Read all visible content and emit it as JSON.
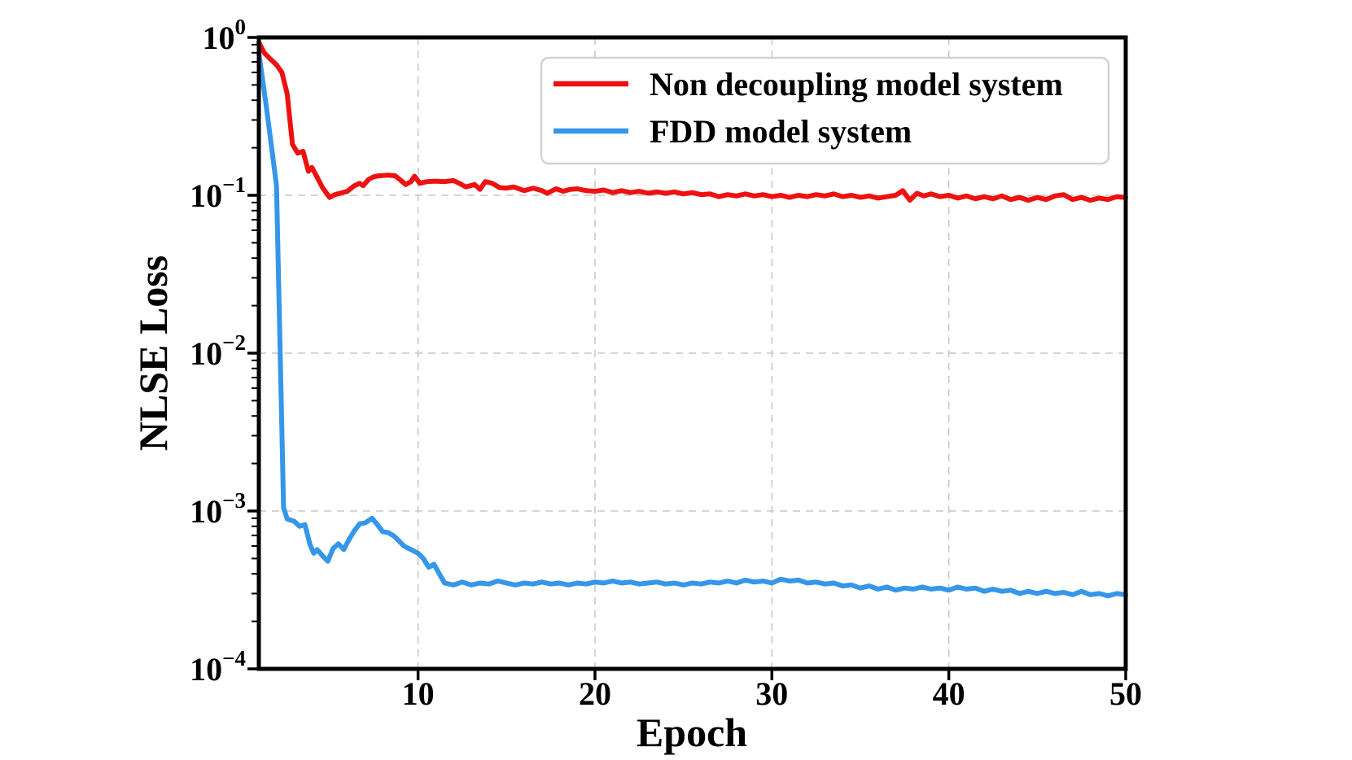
{
  "figure": {
    "background": "#ffffff",
    "xlabel": "Epoch",
    "ylabel": "NLSE Loss"
  },
  "legend": {
    "entries": [
      {
        "label": "Non decoupling model system",
        "color": "#ee1111"
      },
      {
        "label": "FDD model system",
        "color": "#3596ea"
      }
    ]
  },
  "chart_data": {
    "type": "line",
    "title": "",
    "xlabel": "Epoch",
    "ylabel": "NLSE Loss",
    "x_axis": {
      "scale": "linear",
      "min": 1,
      "max": 50,
      "ticks": [
        10,
        20,
        30,
        40,
        50
      ]
    },
    "y_axis": {
      "scale": "log",
      "min": 0.0001,
      "max": 1,
      "tick_exponents": [
        0,
        -1,
        -2,
        -3,
        -4
      ]
    },
    "grid": {
      "style": "dashed",
      "color": "#c9c9c9",
      "vertical_at_x": [
        10,
        20,
        30,
        40
      ],
      "horizontal_at_y": [
        0.1,
        0.01,
        0.001
      ]
    },
    "legend_position": "upper right",
    "series": [
      {
        "name": "Non decoupling model system",
        "color": "#ee1111",
        "points": [
          [
            1,
            0.93
          ],
          [
            1.3,
            0.8
          ],
          [
            1.6,
            0.74
          ],
          [
            2,
            0.67
          ],
          [
            2.3,
            0.6
          ],
          [
            2.6,
            0.44
          ],
          [
            2.9,
            0.21
          ],
          [
            3.2,
            0.185
          ],
          [
            3.5,
            0.19
          ],
          [
            3.8,
            0.142
          ],
          [
            4.0,
            0.15
          ],
          [
            4.3,
            0.13
          ],
          [
            4.6,
            0.112
          ],
          [
            5.0,
            0.097
          ],
          [
            5.3,
            0.101
          ],
          [
            5.6,
            0.103
          ],
          [
            6.0,
            0.106
          ],
          [
            6.4,
            0.115
          ],
          [
            6.7,
            0.119
          ],
          [
            6.9,
            0.115
          ],
          [
            7.2,
            0.126
          ],
          [
            7.5,
            0.131
          ],
          [
            7.8,
            0.133
          ],
          [
            8.3,
            0.134
          ],
          [
            8.7,
            0.133
          ],
          [
            9.0,
            0.125
          ],
          [
            9.3,
            0.117
          ],
          [
            9.6,
            0.122
          ],
          [
            9.8,
            0.132
          ],
          [
            10.1,
            0.119
          ],
          [
            10.5,
            0.122
          ],
          [
            11,
            0.123
          ],
          [
            11.5,
            0.122
          ],
          [
            12,
            0.124
          ],
          [
            12.4,
            0.118
          ],
          [
            12.7,
            0.113
          ],
          [
            13.2,
            0.117
          ],
          [
            13.5,
            0.109
          ],
          [
            13.8,
            0.122
          ],
          [
            14.2,
            0.119
          ],
          [
            14.6,
            0.112
          ],
          [
            15,
            0.111
          ],
          [
            15.4,
            0.113
          ],
          [
            16,
            0.107
          ],
          [
            16.5,
            0.111
          ],
          [
            17,
            0.107
          ],
          [
            17.3,
            0.103
          ],
          [
            17.8,
            0.11
          ],
          [
            18.2,
            0.106
          ],
          [
            18.6,
            0.109
          ],
          [
            19,
            0.11
          ],
          [
            19.5,
            0.107
          ],
          [
            20,
            0.106
          ],
          [
            20.5,
            0.108
          ],
          [
            21,
            0.104
          ],
          [
            21.5,
            0.107
          ],
          [
            22,
            0.104
          ],
          [
            22.5,
            0.106
          ],
          [
            23,
            0.103
          ],
          [
            23.5,
            0.105
          ],
          [
            24,
            0.103
          ],
          [
            24.5,
            0.105
          ],
          [
            25,
            0.102
          ],
          [
            25.5,
            0.104
          ],
          [
            26,
            0.101
          ],
          [
            26.5,
            0.102
          ],
          [
            27,
            0.098
          ],
          [
            27.5,
            0.101
          ],
          [
            28,
            0.099
          ],
          [
            28.5,
            0.102
          ],
          [
            29,
            0.099
          ],
          [
            29.5,
            0.101
          ],
          [
            30,
            0.098
          ],
          [
            30.5,
            0.1
          ],
          [
            31,
            0.097
          ],
          [
            31.5,
            0.1
          ],
          [
            32,
            0.098
          ],
          [
            32.5,
            0.101
          ],
          [
            33,
            0.099
          ],
          [
            33.5,
            0.102
          ],
          [
            34,
            0.098
          ],
          [
            34.5,
            0.1
          ],
          [
            35,
            0.097
          ],
          [
            35.5,
            0.099
          ],
          [
            36,
            0.096
          ],
          [
            36.5,
            0.098
          ],
          [
            37,
            0.1
          ],
          [
            37.4,
            0.107
          ],
          [
            37.8,
            0.093
          ],
          [
            38.2,
            0.103
          ],
          [
            38.6,
            0.099
          ],
          [
            39,
            0.102
          ],
          [
            39.5,
            0.098
          ],
          [
            40,
            0.1
          ],
          [
            40.5,
            0.096
          ],
          [
            41,
            0.099
          ],
          [
            41.5,
            0.095
          ],
          [
            42,
            0.098
          ],
          [
            42.5,
            0.095
          ],
          [
            43,
            0.099
          ],
          [
            43.5,
            0.094
          ],
          [
            44,
            0.097
          ],
          [
            44.5,
            0.093
          ],
          [
            45,
            0.097
          ],
          [
            45.5,
            0.094
          ],
          [
            46,
            0.099
          ],
          [
            46.5,
            0.101
          ],
          [
            47,
            0.094
          ],
          [
            47.5,
            0.097
          ],
          [
            48,
            0.093
          ],
          [
            48.5,
            0.096
          ],
          [
            49,
            0.094
          ],
          [
            49.5,
            0.098
          ],
          [
            50,
            0.097
          ]
        ]
      },
      {
        "name": "FDD model system",
        "color": "#3596ea",
        "points": [
          [
            1,
            0.8
          ],
          [
            1.4,
            0.38
          ],
          [
            1.7,
            0.21
          ],
          [
            2,
            0.115
          ],
          [
            2.4,
            0.00105
          ],
          [
            2.6,
            0.00089
          ],
          [
            3,
            0.00086
          ],
          [
            3.3,
            0.0008
          ],
          [
            3.6,
            0.00082
          ],
          [
            3.9,
            0.00061
          ],
          [
            4.1,
            0.00054
          ],
          [
            4.3,
            0.00057
          ],
          [
            4.6,
            0.00052
          ],
          [
            4.9,
            0.00048
          ],
          [
            5.2,
            0.00058
          ],
          [
            5.5,
            0.00062
          ],
          [
            5.8,
            0.00057
          ],
          [
            6.1,
            0.00066
          ],
          [
            6.4,
            0.00075
          ],
          [
            6.7,
            0.00083
          ],
          [
            7.0,
            0.00084
          ],
          [
            7.4,
            0.0009
          ],
          [
            7.7,
            0.00082
          ],
          [
            8.0,
            0.00074
          ],
          [
            8.3,
            0.00073
          ],
          [
            8.6,
            0.0007
          ],
          [
            8.9,
            0.00065
          ],
          [
            9.2,
            0.0006
          ],
          [
            9.6,
            0.00057
          ],
          [
            10.0,
            0.00054
          ],
          [
            10.3,
            0.0005
          ],
          [
            10.6,
            0.00044
          ],
          [
            10.9,
            0.00046
          ],
          [
            11.2,
            0.0004
          ],
          [
            11.5,
            0.00035
          ],
          [
            12,
            0.00034
          ],
          [
            12.5,
            0.000355
          ],
          [
            13,
            0.00034
          ],
          [
            13.5,
            0.00035
          ],
          [
            14,
            0.000345
          ],
          [
            14.5,
            0.00036
          ],
          [
            15,
            0.00035
          ],
          [
            15.5,
            0.00034
          ],
          [
            16,
            0.00035
          ],
          [
            16.5,
            0.000345
          ],
          [
            17,
            0.000355
          ],
          [
            17.5,
            0.000345
          ],
          [
            18,
            0.00035
          ],
          [
            18.5,
            0.00034
          ],
          [
            19,
            0.00035
          ],
          [
            19.5,
            0.000345
          ],
          [
            20,
            0.000355
          ],
          [
            20.5,
            0.00035
          ],
          [
            21,
            0.00036
          ],
          [
            21.5,
            0.00035
          ],
          [
            22,
            0.000355
          ],
          [
            22.5,
            0.000345
          ],
          [
            23,
            0.00035
          ],
          [
            23.5,
            0.000355
          ],
          [
            24,
            0.000345
          ],
          [
            24.5,
            0.00035
          ],
          [
            25,
            0.00034
          ],
          [
            25.5,
            0.00035
          ],
          [
            26,
            0.000345
          ],
          [
            26.5,
            0.000355
          ],
          [
            27,
            0.00035
          ],
          [
            27.5,
            0.00036
          ],
          [
            28,
            0.00035
          ],
          [
            28.5,
            0.000365
          ],
          [
            29,
            0.000355
          ],
          [
            29.5,
            0.00036
          ],
          [
            30,
            0.00035
          ],
          [
            30.5,
            0.00037
          ],
          [
            31,
            0.00036
          ],
          [
            31.5,
            0.000365
          ],
          [
            32,
            0.00035
          ],
          [
            32.5,
            0.000355
          ],
          [
            33,
            0.000345
          ],
          [
            33.5,
            0.00035
          ],
          [
            34,
            0.000335
          ],
          [
            34.5,
            0.00034
          ],
          [
            35,
            0.000325
          ],
          [
            35.5,
            0.000335
          ],
          [
            36,
            0.00032
          ],
          [
            36.5,
            0.00033
          ],
          [
            37,
            0.000315
          ],
          [
            37.5,
            0.000325
          ],
          [
            38,
            0.00032
          ],
          [
            38.5,
            0.00033
          ],
          [
            39,
            0.00032
          ],
          [
            39.5,
            0.000325
          ],
          [
            40,
            0.000315
          ],
          [
            40.5,
            0.00033
          ],
          [
            41,
            0.00032
          ],
          [
            41.5,
            0.000325
          ],
          [
            42,
            0.00031
          ],
          [
            42.5,
            0.00032
          ],
          [
            43,
            0.00031
          ],
          [
            43.5,
            0.000315
          ],
          [
            44,
            0.0003
          ],
          [
            44.5,
            0.00031
          ],
          [
            45,
            0.0003
          ],
          [
            45.5,
            0.00031
          ],
          [
            46,
            0.0003
          ],
          [
            46.5,
            0.000305
          ],
          [
            47,
            0.000295
          ],
          [
            47.5,
            0.00031
          ],
          [
            48,
            0.000295
          ],
          [
            48.5,
            0.0003
          ],
          [
            49,
            0.00029
          ],
          [
            49.5,
            0.0003
          ],
          [
            50,
            0.000295
          ]
        ]
      }
    ]
  }
}
